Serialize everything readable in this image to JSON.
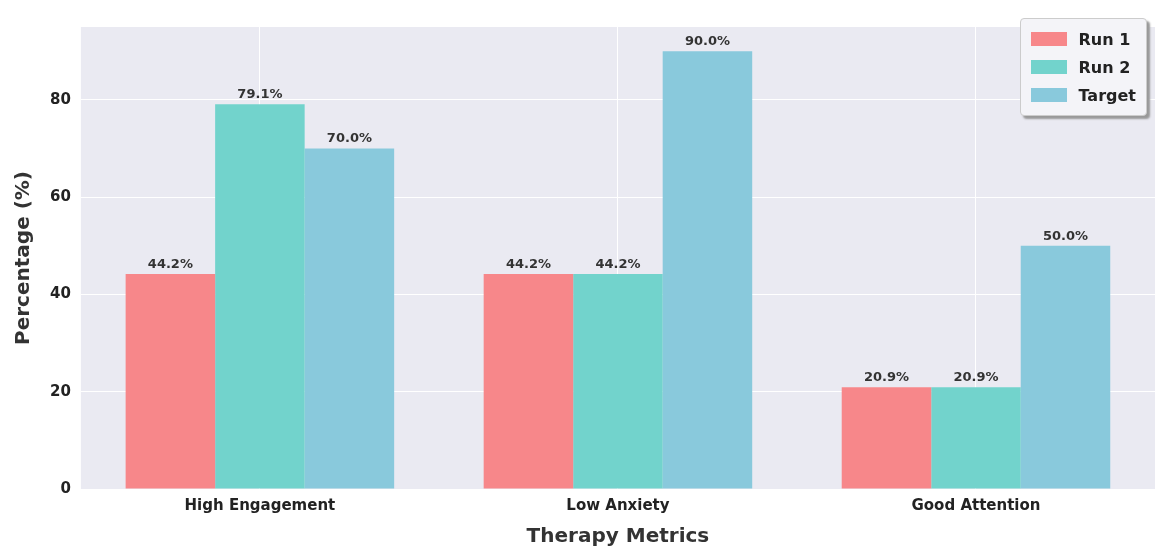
{
  "chart_data": {
    "type": "bar",
    "xlabel": "Therapy Metrics",
    "ylabel": "Percentage (%)",
    "categories": [
      "High Engagement",
      "Low Anxiety",
      "Good Attention"
    ],
    "series": [
      {
        "name": "Run 1",
        "color": "#f7878a",
        "values": [
          44.2,
          44.2,
          20.9
        ],
        "value_labels": [
          "44.2%",
          "44.2%",
          "20.9%"
        ]
      },
      {
        "name": "Run 2",
        "color": "#72d3cc",
        "values": [
          79.1,
          44.2,
          20.9
        ],
        "value_labels": [
          "79.1%",
          "44.2%",
          "20.9%"
        ]
      },
      {
        "name": "Target",
        "color": "#89c9dc",
        "values": [
          70.0,
          90.0,
          50.0
        ],
        "value_labels": [
          "70.0%",
          "90.0%",
          "50.0%"
        ]
      }
    ],
    "ylim": [
      0,
      95
    ],
    "yticks": [
      0,
      20,
      40,
      60,
      80
    ],
    "grid": true,
    "legend": "top right"
  }
}
